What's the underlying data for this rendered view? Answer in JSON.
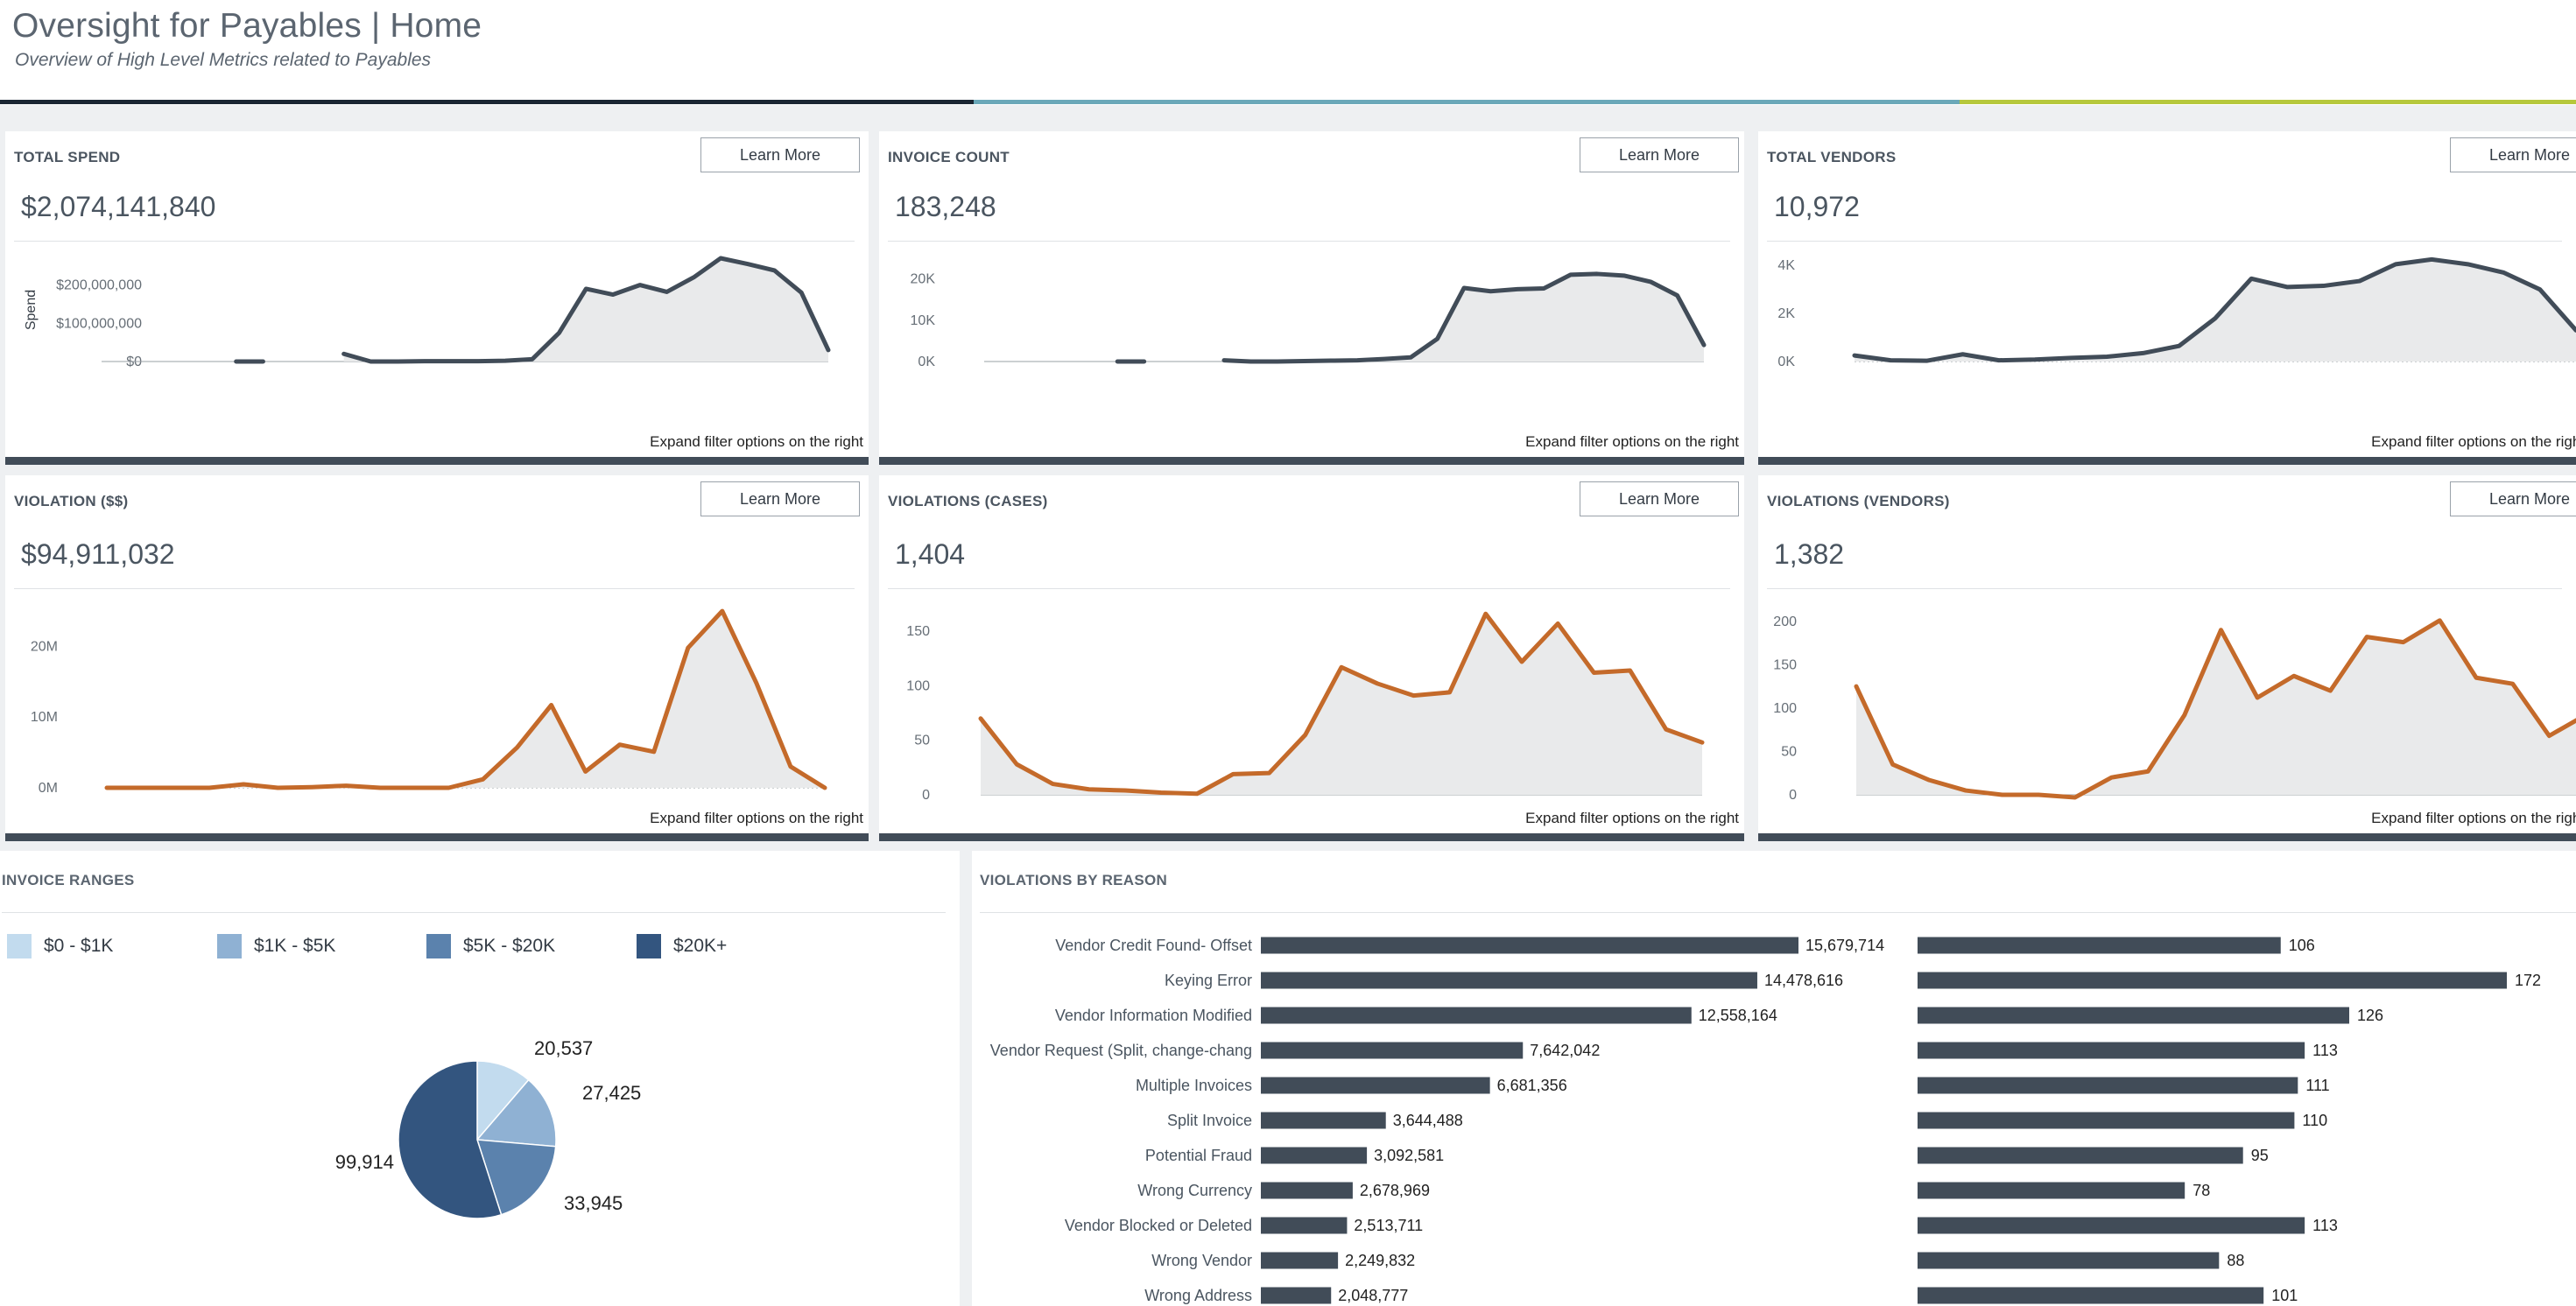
{
  "header": {
    "title": "Oversight for Payables | Home",
    "subtitle": "Overview of High Level Metrics related to Payables"
  },
  "colors": {
    "rule_dark": "#1b2633",
    "rule_teal": "#6aa8b9",
    "rule_lime": "#b6c83c",
    "line_dark": "#414c58",
    "line_orange": "#c46a2a",
    "area_fill": "#e9eaeb",
    "pie": [
      "#c2dbee",
      "#8fb1d3",
      "#5b82ad",
      "#33557f"
    ]
  },
  "learn_more_label": "Learn More",
  "expand_label": "Expand filter options on the right",
  "cards": [
    {
      "id": "total-spend",
      "title": "TOTAL SPEND",
      "value": "$2,074,141,840"
    },
    {
      "id": "invoice-count",
      "title": "INVOICE COUNT",
      "value": "183,248"
    },
    {
      "id": "total-vendors",
      "title": "TOTAL VENDORS",
      "value": "10,972"
    },
    {
      "id": "violation-dollars",
      "title": "VIOLATION ($$)",
      "value": "$94,911,032"
    },
    {
      "id": "violations-cases",
      "title": "VIOLATIONS (CASES)",
      "value": "1,404"
    },
    {
      "id": "violations-vendors",
      "title": "VIOLATIONS (VENDORS)",
      "value": "1,382"
    }
  ],
  "chart_data": [
    {
      "type": "area",
      "title": "TOTAL SPEND",
      "ylabel": "Spend",
      "ylim": [
        0,
        270000000
      ],
      "y_ticks": [
        {
          "label": "$0",
          "value": 0
        },
        {
          "label": "$100,000,000",
          "value": 100000000
        },
        {
          "label": "$200,000,000",
          "value": 200000000
        }
      ],
      "values": [
        null,
        null,
        null,
        null,
        null,
        0,
        0,
        null,
        null,
        20000000,
        0,
        0,
        1000000,
        1000000,
        1000000,
        2000000,
        6000000,
        75000000,
        190000000,
        175000000,
        200000000,
        182000000,
        220000000,
        270000000,
        255000000,
        238000000,
        180000000,
        30000000
      ],
      "color": "line_dark",
      "baseline_dotted": false
    },
    {
      "type": "area",
      "title": "INVOICE COUNT",
      "ylim": [
        0,
        25000
      ],
      "y_ticks": [
        {
          "label": "0K",
          "value": 0
        },
        {
          "label": "10K",
          "value": 10000
        },
        {
          "label": "20K",
          "value": 20000
        }
      ],
      "values": [
        null,
        null,
        null,
        null,
        null,
        0,
        0,
        null,
        null,
        300,
        0,
        0,
        100,
        200,
        300,
        600,
        1000,
        5500,
        17800,
        17000,
        17500,
        17700,
        21000,
        21200,
        20800,
        19300,
        16000,
        4000
      ],
      "color": "line_dark",
      "baseline_dotted": false
    },
    {
      "type": "area",
      "title": "TOTAL VENDORS",
      "ylim": [
        0,
        4300
      ],
      "y_ticks": [
        {
          "label": "0K",
          "value": 0
        },
        {
          "label": "2K",
          "value": 2000
        },
        {
          "label": "4K",
          "value": 4000
        }
      ],
      "values": [
        250,
        50,
        30,
        300,
        50,
        80,
        150,
        200,
        350,
        650,
        1800,
        3450,
        3100,
        3150,
        3350,
        4050,
        4250,
        4050,
        3700,
        3000,
        1300
      ],
      "color": "line_dark",
      "baseline_dotted": true
    },
    {
      "type": "area",
      "title": "VIOLATION ($$)",
      "ylim": [
        0,
        26000000
      ],
      "y_ticks": [
        {
          "label": "0M",
          "value": 0
        },
        {
          "label": "10M",
          "value": 10000000
        },
        {
          "label": "20M",
          "value": 20000000
        }
      ],
      "values": [
        0,
        0,
        0,
        0,
        500000,
        0,
        100000,
        300000,
        0,
        0,
        0,
        1200000,
        5700000,
        11700000,
        2300000,
        6100000,
        5100000,
        19800000,
        25000000,
        14800000,
        3000000,
        0
      ],
      "color": "line_orange",
      "baseline_dotted": true
    },
    {
      "type": "area",
      "title": "VIOLATIONS (CASES)",
      "ylim": [
        0,
        175
      ],
      "y_ticks": [
        {
          "label": "0",
          "value": 0
        },
        {
          "label": "50",
          "value": 50
        },
        {
          "label": "100",
          "value": 100
        },
        {
          "label": "150",
          "value": 150
        }
      ],
      "values": [
        70,
        28,
        10,
        5,
        4,
        2,
        1,
        19,
        20,
        55,
        117,
        102,
        91,
        94,
        166,
        122,
        157,
        112,
        114,
        60,
        48
      ],
      "color": "line_orange",
      "baseline_dotted": false
    },
    {
      "type": "area",
      "title": "VIOLATIONS (VENDORS)",
      "ylim": [
        0,
        220
      ],
      "y_ticks": [
        {
          "label": "0",
          "value": 0
        },
        {
          "label": "50",
          "value": 50
        },
        {
          "label": "100",
          "value": 100
        },
        {
          "label": "150",
          "value": 150
        },
        {
          "label": "200",
          "value": 200
        }
      ],
      "values": [
        125,
        35,
        17,
        5,
        0,
        0,
        -3,
        20,
        27,
        92,
        190,
        112,
        137,
        120,
        182,
        176,
        201,
        135,
        128,
        68,
        92
      ],
      "color": "line_orange",
      "baseline_dotted": false
    },
    {
      "type": "pie",
      "title": "INVOICE RANGES",
      "categories": [
        "$0 - $1K",
        "$1K - $5K",
        "$5K - $20K",
        "$20K+"
      ],
      "values": [
        20537,
        27425,
        33945,
        99914
      ],
      "labels": [
        "20,537",
        "27,425",
        "33,945",
        "99,914"
      ]
    },
    {
      "type": "bar",
      "title": "VIOLATIONS BY REASON",
      "categories": [
        "Vendor Credit Found- Offset",
        "Keying Error",
        "Vendor Information Modified",
        "Vendor Request (Split, change-chang",
        "Multiple Invoices",
        "Split Invoice",
        "Potential Fraud",
        "Wrong Currency",
        "Vendor Blocked or Deleted",
        "Wrong Vendor",
        "Wrong Address"
      ],
      "series": [
        {
          "values": [
            15679714,
            14478616,
            12558164,
            7642042,
            6681356,
            3644488,
            3092581,
            2678969,
            2513711,
            2249832,
            2048777
          ],
          "labels": [
            "15,679,714",
            "14,478,616",
            "12,558,164",
            "7,642,042",
            "6,681,356",
            "3,644,488",
            "3,092,581",
            "2,678,969",
            "2,513,711",
            "2,249,832",
            "2,048,777"
          ]
        },
        {
          "values": [
            106,
            172,
            126,
            113,
            111,
            110,
            95,
            78,
            113,
            88,
            101
          ],
          "labels": [
            "106",
            "172",
            "126",
            "113",
            "111",
            "110",
            "95",
            "78",
            "113",
            "88",
            "101"
          ]
        }
      ]
    }
  ]
}
